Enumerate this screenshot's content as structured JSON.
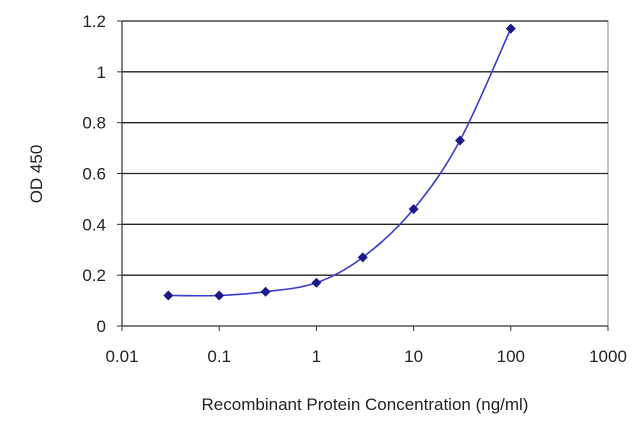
{
  "chart_data": {
    "type": "line",
    "title": "",
    "xlabel": "Recombinant Protein Concentration (ng/ml)",
    "ylabel": "OD 450",
    "x_scale": "log",
    "xlim": [
      0.01,
      1000
    ],
    "ylim": [
      0,
      1.2
    ],
    "x_ticks": [
      0.01,
      0.1,
      1,
      10,
      100,
      1000
    ],
    "x_tick_labels": [
      "0.01",
      "0.1",
      "1",
      "10",
      "100",
      "1000"
    ],
    "y_ticks": [
      0,
      0.2,
      0.4,
      0.6,
      0.8,
      1,
      1.2
    ],
    "y_tick_labels": [
      "0",
      "0.2",
      "0.4",
      "0.6",
      "0.8",
      "1",
      "1.2"
    ],
    "grid": "horizontal",
    "legend": "none",
    "series": [
      {
        "x": [
          0.03,
          0.1,
          0.3,
          1,
          3,
          10,
          30,
          100
        ],
        "y": [
          0.12,
          0.12,
          0.135,
          0.17,
          0.27,
          0.46,
          0.73,
          1.17
        ],
        "color": "#2a2a9a"
      }
    ],
    "colors": {
      "line": "#3a3acc",
      "marker": "#1a1a8a",
      "grid": "#222222",
      "plot_border": "#888888"
    }
  }
}
